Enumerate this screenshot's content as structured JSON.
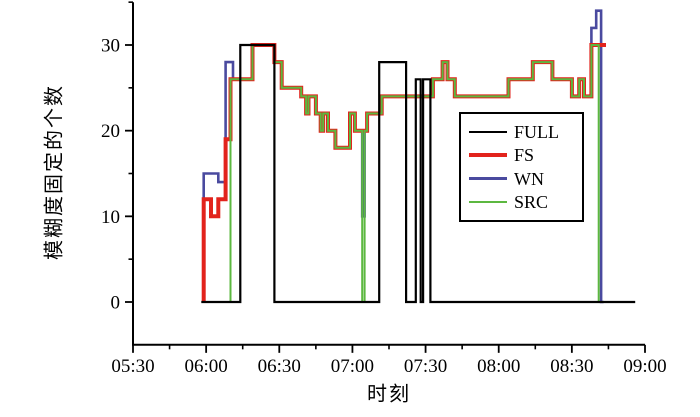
{
  "chart_data": {
    "type": "line",
    "title": "",
    "xlabel": "时刻",
    "ylabel": "模糊度固定的个数",
    "x_tick_labels": [
      "05:30",
      "06:00",
      "06:30",
      "07:00",
      "07:30",
      "08:00",
      "08:30",
      "09:00"
    ],
    "x_tick_minutes": [
      0,
      30,
      60,
      90,
      120,
      150,
      180,
      210
    ],
    "x_minor_minutes": [
      15,
      45,
      75,
      105,
      135,
      165,
      195
    ],
    "y_tick_values": [
      0,
      10,
      20,
      30
    ],
    "y_minor_values": [
      5,
      15,
      25,
      35
    ],
    "ylim": [
      -5,
      35
    ],
    "xlim_minutes": [
      0,
      210
    ],
    "grid": "off",
    "legend_position": "inside-right",
    "axis_color": "#000000",
    "legend": [
      {
        "name": "FULL",
        "color": "#000000",
        "width": 2.2
      },
      {
        "name": "FS",
        "color": "#e2231c",
        "width": 4
      },
      {
        "name": "WN",
        "color": "#4a4a9f",
        "width": 3
      },
      {
        "name": "SRC",
        "color": "#5cb840",
        "width": 2
      }
    ],
    "series": [
      {
        "name": "WN",
        "color": "#4a4a9f",
        "width": 2.6,
        "points": [
          [
            29,
            15
          ],
          [
            35,
            14
          ],
          [
            38,
            28
          ],
          [
            41,
            26
          ],
          [
            49,
            30
          ],
          [
            58,
            28
          ],
          [
            61,
            25
          ],
          [
            69,
            24
          ],
          [
            71,
            22
          ],
          [
            72,
            24
          ],
          [
            75,
            22
          ],
          [
            77,
            20
          ],
          [
            78,
            22
          ],
          [
            80,
            20
          ],
          [
            83,
            18
          ],
          [
            89,
            22
          ],
          [
            91,
            20
          ],
          [
            94,
            10
          ],
          [
            95,
            20
          ],
          [
            96,
            22
          ],
          [
            102,
            24
          ],
          [
            123,
            26
          ],
          [
            127,
            28
          ],
          [
            129,
            26
          ],
          [
            132,
            24
          ],
          [
            154,
            26
          ],
          [
            164,
            28
          ],
          [
            172,
            26
          ],
          [
            180,
            24
          ],
          [
            183,
            26
          ],
          [
            185,
            24
          ],
          [
            188,
            32
          ],
          [
            190,
            34
          ],
          [
            192,
            0
          ],
          [
            193,
            0
          ]
        ]
      },
      {
        "name": "FS",
        "color": "#e2231c",
        "width": 4,
        "points": [
          [
            29,
            12
          ],
          [
            32,
            10
          ],
          [
            35,
            12
          ],
          [
            38,
            19
          ],
          [
            40,
            26
          ],
          [
            49,
            30
          ],
          [
            58,
            28
          ],
          [
            61,
            25
          ],
          [
            69,
            24
          ],
          [
            71,
            22
          ],
          [
            72,
            24
          ],
          [
            75,
            22
          ],
          [
            77,
            20
          ],
          [
            78,
            22
          ],
          [
            80,
            20
          ],
          [
            83,
            18
          ],
          [
            89,
            22
          ],
          [
            91,
            20
          ],
          [
            96,
            22
          ],
          [
            102,
            24
          ],
          [
            123,
            26
          ],
          [
            127,
            28
          ],
          [
            129,
            26
          ],
          [
            132,
            24
          ],
          [
            154,
            26
          ],
          [
            164,
            28
          ],
          [
            172,
            26
          ],
          [
            180,
            24
          ],
          [
            183,
            26
          ],
          [
            185,
            24
          ],
          [
            188,
            30
          ],
          [
            194,
            30
          ]
        ]
      },
      {
        "name": "SRC",
        "color": "#5cb840",
        "width": 2,
        "points": [
          [
            29,
            0
          ],
          [
            40,
            26
          ],
          [
            49,
            30
          ],
          [
            58,
            28
          ],
          [
            61,
            25
          ],
          [
            69,
            24
          ],
          [
            71,
            22
          ],
          [
            72,
            24
          ],
          [
            75,
            22
          ],
          [
            77,
            20
          ],
          [
            78,
            22
          ],
          [
            80,
            20
          ],
          [
            83,
            18
          ],
          [
            89,
            22
          ],
          [
            91,
            20
          ],
          [
            94,
            0
          ],
          [
            95,
            20
          ],
          [
            96,
            22
          ],
          [
            102,
            24
          ],
          [
            123,
            26
          ],
          [
            127,
            28
          ],
          [
            129,
            26
          ],
          [
            132,
            24
          ],
          [
            154,
            26
          ],
          [
            164,
            28
          ],
          [
            172,
            26
          ],
          [
            180,
            24
          ],
          [
            183,
            26
          ],
          [
            185,
            24
          ],
          [
            188,
            30
          ],
          [
            191,
            0
          ],
          [
            197,
            0
          ]
        ]
      },
      {
        "name": "FULL",
        "color": "#000000",
        "width": 2.2,
        "points": [
          [
            28,
            0
          ],
          [
            44,
            30
          ],
          [
            58,
            0
          ],
          [
            101,
            28
          ],
          [
            112,
            0
          ],
          [
            116,
            26
          ],
          [
            118,
            0
          ],
          [
            119,
            26
          ],
          [
            122,
            0
          ],
          [
            206,
            0
          ]
        ]
      }
    ]
  }
}
